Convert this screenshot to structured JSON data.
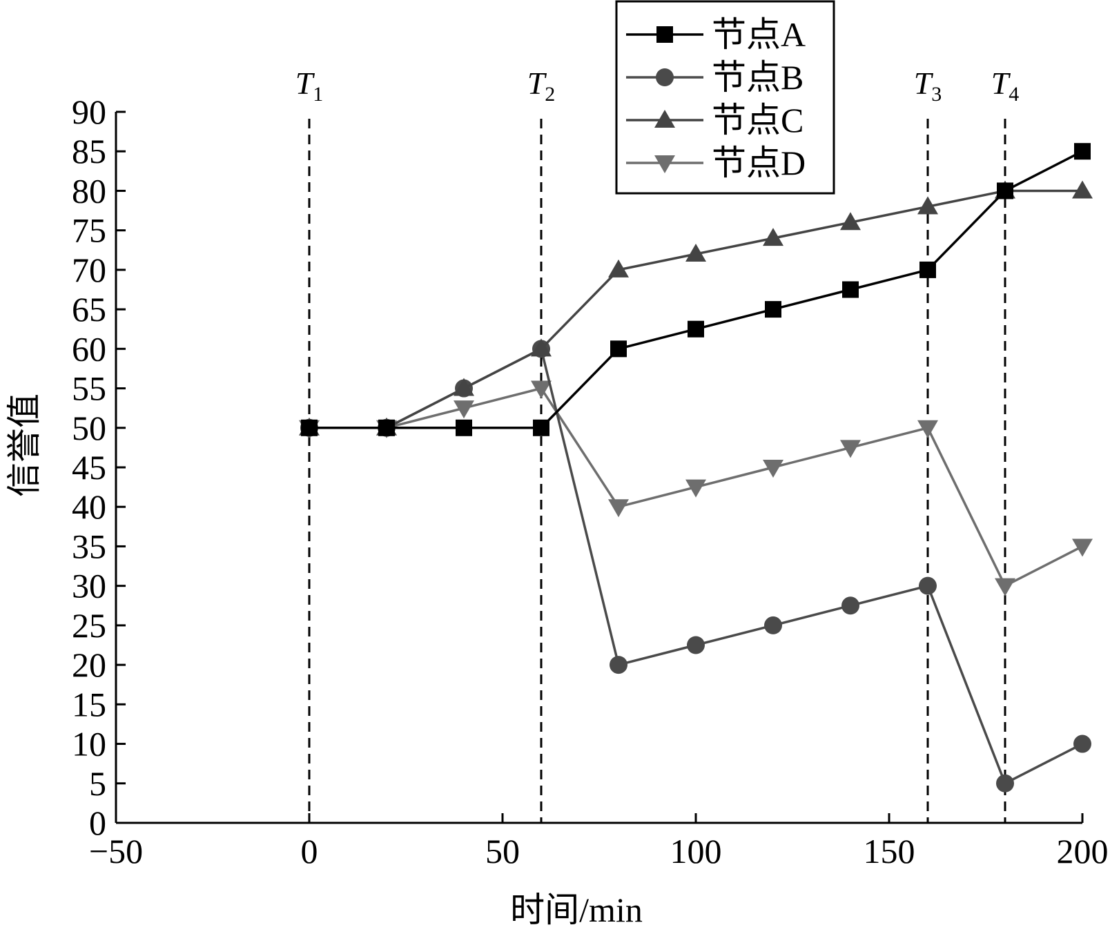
{
  "chart_data": {
    "type": "line",
    "xlabel": "时间/min",
    "ylabel": "信誉值",
    "xlim": [
      -50,
      200
    ],
    "ylim": [
      0,
      90
    ],
    "x_ticks": [
      -50,
      0,
      50,
      100,
      150,
      200
    ],
    "y_ticks": [
      0,
      5,
      10,
      15,
      20,
      25,
      30,
      35,
      40,
      45,
      50,
      55,
      60,
      65,
      70,
      75,
      80,
      85,
      90
    ],
    "x_tick_labels": [
      "−50",
      "0",
      "50",
      "100",
      "150",
      "200"
    ],
    "grid": false,
    "legend_position": "top-right",
    "x": [
      0,
      20,
      40,
      60,
      80,
      100,
      120,
      140,
      160,
      180,
      200
    ],
    "series": [
      {
        "name": "节点A",
        "marker": "square",
        "color": "#000000",
        "values": [
          50,
          50,
          50,
          50,
          60,
          62.5,
          65,
          67.5,
          70,
          80,
          85
        ]
      },
      {
        "name": "节点B",
        "marker": "circle",
        "color": "#4a4a4a",
        "values": [
          50,
          50,
          55,
          60,
          20,
          22.5,
          25,
          27.5,
          30,
          5,
          10
        ]
      },
      {
        "name": "节点C",
        "marker": "triangle-up",
        "color": "#444444",
        "values": [
          50,
          50,
          55,
          60,
          70,
          72,
          74,
          76,
          78,
          80,
          80
        ]
      },
      {
        "name": "节点D",
        "marker": "triangle-down",
        "color": "#6e6e6e",
        "values": [
          50,
          50,
          52.5,
          55,
          40,
          42.5,
          45,
          47.5,
          50,
          30,
          35
        ]
      }
    ],
    "annotations": [
      {
        "label": "T",
        "sub": "1",
        "x": 0
      },
      {
        "label": "T",
        "sub": "2",
        "x": 60
      },
      {
        "label": "T",
        "sub": "3",
        "x": 160
      },
      {
        "label": "T",
        "sub": "4",
        "x": 180
      }
    ]
  }
}
